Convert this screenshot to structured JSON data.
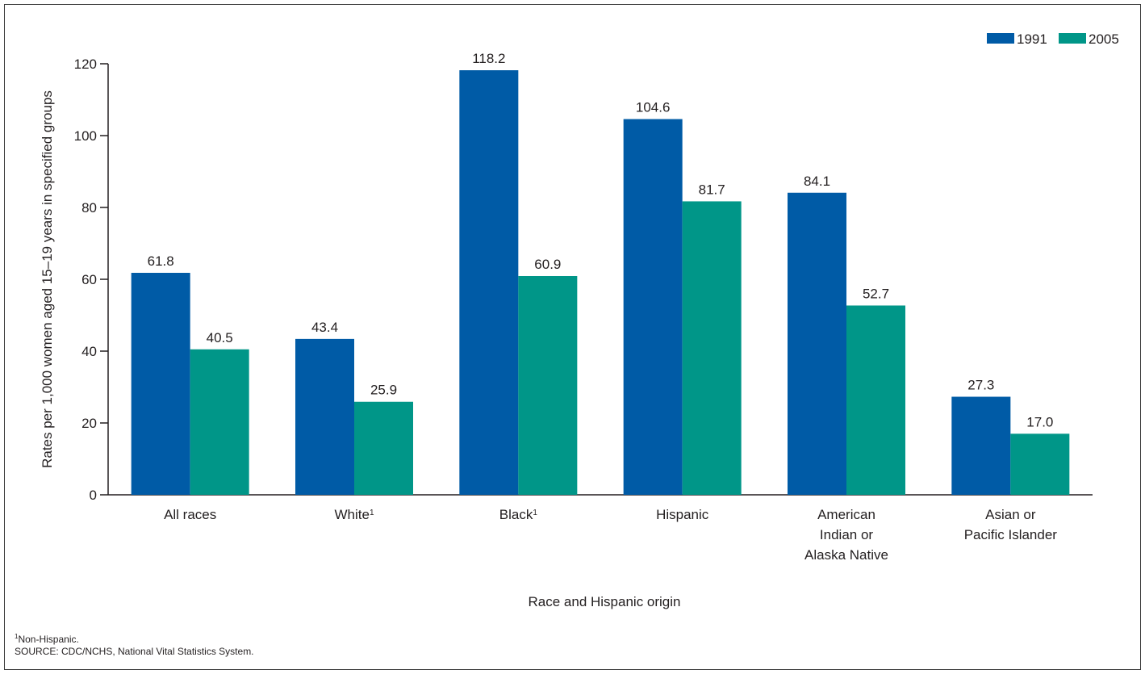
{
  "chart_data": {
    "type": "bar",
    "categories": [
      {
        "lines": [
          "All races"
        ],
        "sup": ""
      },
      {
        "lines": [
          "White"
        ],
        "sup": "1"
      },
      {
        "lines": [
          "Black"
        ],
        "sup": "1"
      },
      {
        "lines": [
          "Hispanic"
        ],
        "sup": ""
      },
      {
        "lines": [
          "American",
          "Indian or",
          "Alaska Native"
        ],
        "sup": ""
      },
      {
        "lines": [
          "Asian or",
          "Pacific Islander"
        ],
        "sup": ""
      }
    ],
    "series": [
      {
        "name": "1991",
        "color": "#005ba6",
        "values": [
          61.8,
          43.4,
          118.2,
          104.6,
          84.1,
          27.3
        ],
        "labels": [
          "61.8",
          "43.4",
          "118.2",
          "104.6",
          "84.1",
          "27.3"
        ]
      },
      {
        "name": "2005",
        "color": "#009688",
        "values": [
          40.5,
          25.9,
          60.9,
          81.7,
          52.7,
          17.0
        ],
        "labels": [
          "40.5",
          "25.9",
          "60.9",
          "81.7",
          "52.7",
          "17.0"
        ]
      }
    ],
    "ylim": [
      0,
      120
    ],
    "yticks": [
      "0",
      "20",
      "40",
      "60",
      "80",
      "100",
      "120"
    ],
    "ylabel": "Rates per 1,000 women aged 15–19 years in specified groups",
    "xlabel": "Race and Hispanic origin",
    "grid": false,
    "legend": "top-right"
  },
  "footnotes": {
    "note_marker": "1",
    "note_text": "Non-Hispanic.",
    "source": "SOURCE: CDC/NCHS, National Vital Statistics System."
  }
}
